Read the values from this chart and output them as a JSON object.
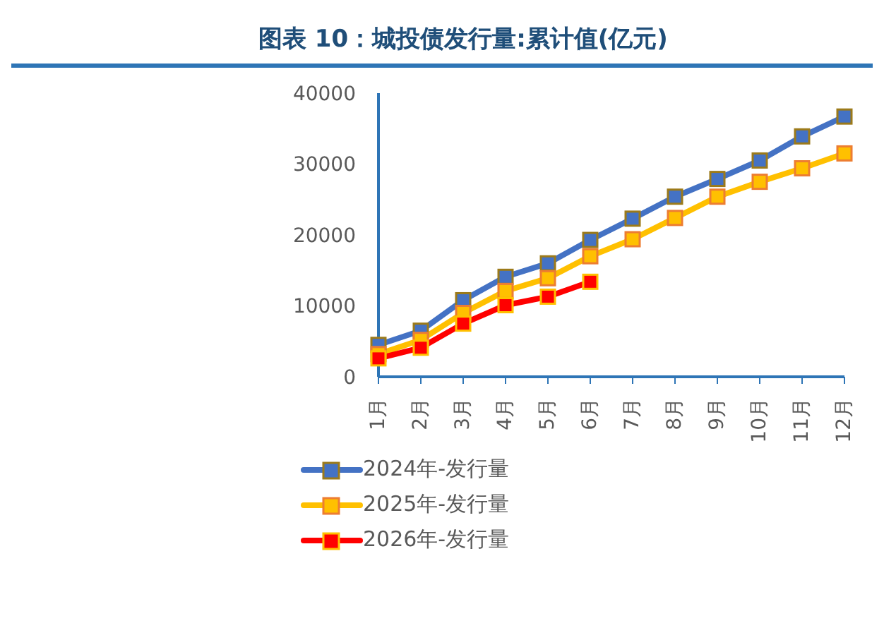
{
  "chart_data": {
    "type": "line",
    "title": "图表 10：城投债发行量:累计值(亿元)",
    "categories": [
      "1月",
      "2月",
      "3月",
      "4月",
      "5月",
      "6月",
      "7月",
      "8月",
      "9月",
      "10月",
      "11月",
      "12月"
    ],
    "series": [
      {
        "name": "2024年-发行量",
        "color": "#4472c4",
        "values": [
          4500,
          6500,
          10800,
          14100,
          16000,
          19300,
          22300,
          25400,
          27900,
          30500,
          33900,
          36700
        ]
      },
      {
        "name": "2025年-发行量",
        "color": "#ffc000",
        "values": [
          3200,
          5200,
          9000,
          12100,
          13900,
          17000,
          19400,
          22400,
          25400,
          27500,
          29400,
          31500
        ]
      },
      {
        "name": "2026年-发行量",
        "color": "#ff0000",
        "values": [
          2600,
          4100,
          7500,
          10100,
          11300,
          13400,
          null,
          null,
          null,
          null,
          null,
          null
        ]
      }
    ],
    "ylim": [
      0,
      40000
    ],
    "yticks": [
      0,
      10000,
      20000,
      30000,
      40000
    ],
    "grid": false,
    "legend": "bottom",
    "marker": "square",
    "line_style": "solid"
  }
}
